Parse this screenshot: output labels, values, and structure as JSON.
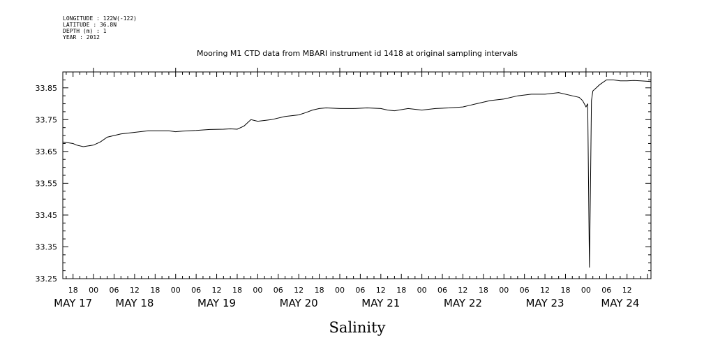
{
  "info": {
    "longitude": "LONGITUDE : 122W(-122)",
    "latitude": "LATITUDE : 36.8N",
    "depth": "DEPTH (m) : 1",
    "year": "YEAR : 2012"
  },
  "chart_data": {
    "type": "line",
    "title": "Mooring M1 CTD data from MBARI instrument id 1418 at original sampling intervals",
    "xlabel": "Salinity",
    "ylabel": "",
    "ylim": [
      33.25,
      33.9
    ],
    "yticks": [
      "33.25",
      "33.35",
      "33.45",
      "33.55",
      "33.65",
      "33.75",
      "33.85"
    ],
    "xlim_hours": [
      -9,
      163
    ],
    "hour_ticks": [
      {
        "label": "18",
        "hour": -6
      },
      {
        "label": "00",
        "hour": 0
      },
      {
        "label": "06",
        "hour": 6
      },
      {
        "label": "12",
        "hour": 12
      },
      {
        "label": "18",
        "hour": 18
      },
      {
        "label": "00",
        "hour": 24
      },
      {
        "label": "06",
        "hour": 30
      },
      {
        "label": "12",
        "hour": 36
      },
      {
        "label": "18",
        "hour": 42
      },
      {
        "label": "00",
        "hour": 48
      },
      {
        "label": "06",
        "hour": 54
      },
      {
        "label": "12",
        "hour": 60
      },
      {
        "label": "18",
        "hour": 66
      },
      {
        "label": "00",
        "hour": 72
      },
      {
        "label": "06",
        "hour": 78
      },
      {
        "label": "12",
        "hour": 84
      },
      {
        "label": "18",
        "hour": 90
      },
      {
        "label": "00",
        "hour": 96
      },
      {
        "label": "06",
        "hour": 102
      },
      {
        "label": "12",
        "hour": 108
      },
      {
        "label": "18",
        "hour": 114
      },
      {
        "label": "00",
        "hour": 120
      },
      {
        "label": "06",
        "hour": 126
      },
      {
        "label": "12",
        "hour": 132
      },
      {
        "label": "18",
        "hour": 138
      },
      {
        "label": "00",
        "hour": 144
      },
      {
        "label": "06",
        "hour": 150
      },
      {
        "label": "12",
        "hour": 156
      }
    ],
    "day_labels": [
      {
        "label": "MAY 17",
        "hour": -6
      },
      {
        "label": "MAY 18",
        "hour": 12
      },
      {
        "label": "MAY 19",
        "hour": 36
      },
      {
        "label": "MAY 20",
        "hour": 60
      },
      {
        "label": "MAY 21",
        "hour": 84
      },
      {
        "label": "MAY 22",
        "hour": 108
      },
      {
        "label": "MAY 23",
        "hour": 132
      },
      {
        "label": "MAY 24",
        "hour": 154
      }
    ],
    "series": [
      {
        "x": [
          -9,
          -6,
          -5,
          -3,
          0,
          2,
          4,
          8,
          12,
          16,
          20,
          22,
          24,
          26,
          30,
          34,
          38,
          40,
          42,
          44,
          46,
          48,
          52,
          56,
          60,
          62,
          64,
          66,
          68,
          72,
          76,
          80,
          84,
          86,
          88,
          92,
          96,
          100,
          104,
          108,
          110,
          112,
          116,
          120,
          124,
          128,
          132,
          136,
          140,
          142,
          143,
          144,
          144.5,
          145,
          145.3,
          145.6,
          146,
          148,
          150,
          152,
          154,
          156,
          158,
          160,
          163
        ],
        "y": [
          33.68,
          33.675,
          33.67,
          33.665,
          33.67,
          33.68,
          33.695,
          33.705,
          33.71,
          33.715,
          33.715,
          33.715,
          33.712,
          33.714,
          33.716,
          33.719,
          33.72,
          33.721,
          33.72,
          33.73,
          33.75,
          33.745,
          33.75,
          33.76,
          33.765,
          33.772,
          33.78,
          33.785,
          33.787,
          33.785,
          33.785,
          33.787,
          33.785,
          33.78,
          33.778,
          33.785,
          33.78,
          33.785,
          33.787,
          33.79,
          33.795,
          33.8,
          33.81,
          33.815,
          33.825,
          33.83,
          33.83,
          33.835,
          33.825,
          33.82,
          33.81,
          33.79,
          33.8,
          33.285,
          33.52,
          33.81,
          33.84,
          33.86,
          33.875,
          33.875,
          33.872,
          33.872,
          33.873,
          33.872,
          33.87
        ]
      }
    ]
  }
}
